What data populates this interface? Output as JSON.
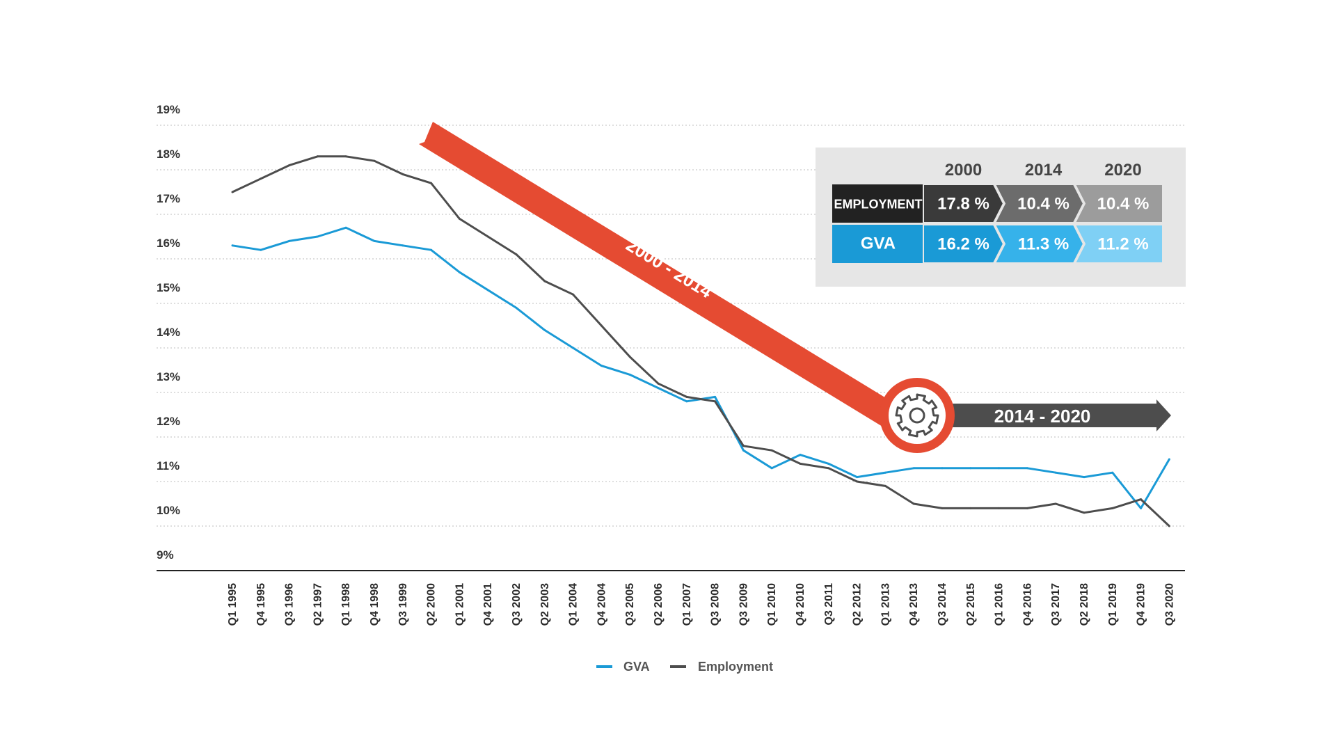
{
  "chart_data": {
    "type": "line",
    "title": "",
    "xlabel": "",
    "ylabel": "",
    "ylim": [
      9,
      19
    ],
    "yticks": [
      "19%",
      "18%",
      "17%",
      "16%",
      "15%",
      "14%",
      "13%",
      "12%",
      "11%",
      "10%",
      "9%"
    ],
    "grid": "horizontal dotted",
    "legend_position": "bottom-center",
    "x_tick_labels": [
      "Q1 1995",
      "Q4 1995",
      "Q3 1996",
      "Q2 1997",
      "Q1 1998",
      "Q4 1998",
      "Q3 1999",
      "Q2 2000",
      "Q1 2001",
      "Q4 2001",
      "Q3 2002",
      "Q2 2003",
      "Q1 2004",
      "Q4 2004",
      "Q3 2005",
      "Q2 2006",
      "Q1 2007",
      "Q3 2008",
      "Q3 2009",
      "Q1 2010",
      "Q4 2010",
      "Q3 2011",
      "Q2 2012",
      "Q1 2013",
      "Q4 2013",
      "Q3 2014",
      "Q2 2015",
      "Q1 2016",
      "Q4 2016",
      "Q3 2017",
      "Q2 2018",
      "Q1 2019",
      "Q4 2019",
      "Q3 2020"
    ],
    "series": [
      {
        "name": "GVA",
        "color": "#1a9ad6",
        "points": [
          [
            "Q1 1995",
            16.3
          ],
          [
            "Q4 1995",
            16.2
          ],
          [
            "Q3 1996",
            16.4
          ],
          [
            "Q2 1997",
            16.5
          ],
          [
            "Q1 1998",
            16.7
          ],
          [
            "Q4 1998",
            16.4
          ],
          [
            "Q3 1999",
            16.3
          ],
          [
            "Q2 2000",
            16.2
          ],
          [
            "Q1 2001",
            15.7
          ],
          [
            "Q4 2001",
            15.3
          ],
          [
            "Q3 2002",
            14.9
          ],
          [
            "Q2 2003",
            14.4
          ],
          [
            "Q1 2004",
            14.0
          ],
          [
            "Q4 2004",
            13.6
          ],
          [
            "Q3 2005",
            13.4
          ],
          [
            "Q2 2006",
            13.1
          ],
          [
            "Q1 2007",
            12.8
          ],
          [
            "Q3 2008",
            12.9
          ],
          [
            "Q3 2009",
            11.7
          ],
          [
            "Q1 2010",
            11.3
          ],
          [
            "Q4 2010",
            11.6
          ],
          [
            "Q3 2011",
            11.4
          ],
          [
            "Q2 2012",
            11.1
          ],
          [
            "Q1 2013",
            11.2
          ],
          [
            "Q4 2013",
            11.3
          ],
          [
            "Q3 2014",
            11.3
          ],
          [
            "Q2 2015",
            11.3
          ],
          [
            "Q1 2016",
            11.3
          ],
          [
            "Q4 2016",
            11.3
          ],
          [
            "Q3 2017",
            11.2
          ],
          [
            "Q2 2018",
            11.1
          ],
          [
            "Q1 2019",
            11.2
          ],
          [
            "Q4 2019",
            10.4
          ],
          [
            "Q3 2020",
            11.5
          ]
        ]
      },
      {
        "name": "Employment",
        "color": "#4d4d4d",
        "points": [
          [
            "Q1 1995",
            17.5
          ],
          [
            "Q4 1995",
            17.8
          ],
          [
            "Q3 1996",
            18.1
          ],
          [
            "Q2 1997",
            18.3
          ],
          [
            "Q1 1998",
            18.3
          ],
          [
            "Q4 1998",
            18.2
          ],
          [
            "Q3 1999",
            17.9
          ],
          [
            "Q2 2000",
            17.7
          ],
          [
            "Q1 2001",
            16.9
          ],
          [
            "Q4 2001",
            16.5
          ],
          [
            "Q3 2002",
            16.1
          ],
          [
            "Q2 2003",
            15.5
          ],
          [
            "Q1 2004",
            15.2
          ],
          [
            "Q4 2004",
            14.5
          ],
          [
            "Q3 2005",
            13.8
          ],
          [
            "Q2 2006",
            13.2
          ],
          [
            "Q1 2007",
            12.9
          ],
          [
            "Q3 2008",
            12.8
          ],
          [
            "Q3 2009",
            11.8
          ],
          [
            "Q1 2010",
            11.7
          ],
          [
            "Q4 2010",
            11.4
          ],
          [
            "Q3 2011",
            11.3
          ],
          [
            "Q2 2012",
            11.0
          ],
          [
            "Q1 2013",
            10.9
          ],
          [
            "Q4 2013",
            10.5
          ],
          [
            "Q3 2014",
            10.4
          ],
          [
            "Q2 2015",
            10.4
          ],
          [
            "Q1 2016",
            10.4
          ],
          [
            "Q4 2016",
            10.4
          ],
          [
            "Q3 2017",
            10.5
          ],
          [
            "Q2 2018",
            10.3
          ],
          [
            "Q1 2019",
            10.4
          ],
          [
            "Q4 2019",
            10.6
          ],
          [
            "Q3 2020",
            10.0
          ]
        ]
      }
    ]
  },
  "legend": {
    "gva": "GVA",
    "employment": "Employment"
  },
  "annotations": {
    "arrow_2000_2014": "2000 - 2014",
    "arrow_2014_2020": "2014 - 2020",
    "gear_icon": "gear-icon"
  },
  "table": {
    "years": [
      "2000",
      "2014",
      "2020"
    ],
    "rows": [
      {
        "label": "EMPLOYMENT",
        "values": [
          "17.8 %",
          "10.4 %",
          "10.4 %"
        ]
      },
      {
        "label": "GVA",
        "values": [
          "16.2 %",
          "11.3 %",
          "11.2 %"
        ]
      }
    ]
  },
  "colors": {
    "gva": "#1a9ad6",
    "employment": "#4d4d4d",
    "red_arrow": "#e54b32",
    "grey_arrow": "#4d4d4d",
    "emp_cells": [
      "#3a3a3a",
      "#6c6c6c",
      "#9c9c9c"
    ],
    "gva_cells": [
      "#1a9ad6",
      "#36b2ea",
      "#7fd0f5"
    ]
  }
}
